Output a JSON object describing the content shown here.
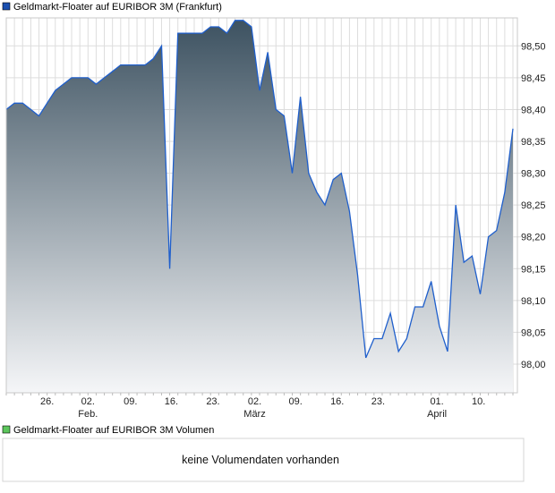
{
  "legend_price": "Geldmarkt-Floater auf EURIBOR 3M (Frankfurt)",
  "legend_volume": "Geldmarkt-Floater auf EURIBOR 3M Volumen",
  "volume_message": "keine Volumendaten vorhanden",
  "colors": {
    "line": "#1f5fcc",
    "fill_top": "#3d5261",
    "fill_bottom": "#f5f6f8",
    "legend_price": "#1a4fb0",
    "legend_volume": "#5cc65c",
    "grid": "#dddddd"
  },
  "chart_data": {
    "type": "area",
    "title": "Geldmarkt-Floater auf EURIBOR 3M (Frankfurt)",
    "xlabel": "",
    "ylabel": "",
    "ylim": [
      97.955,
      98.544
    ],
    "yticks": [
      "98,00",
      "98,05",
      "98,10",
      "98,15",
      "98,20",
      "98,25",
      "98,30",
      "98,35",
      "98,40",
      "98,45",
      "98,50"
    ],
    "ytick_values": [
      98.0,
      98.05,
      98.1,
      98.15,
      98.2,
      98.25,
      98.3,
      98.35,
      98.4,
      98.45,
      98.5
    ],
    "xticks": [
      {
        "index": 5,
        "label": "26.",
        "month": ""
      },
      {
        "index": 10,
        "label": "02.",
        "month": "Feb."
      },
      {
        "index": 15.2,
        "label": "09.",
        "month": ""
      },
      {
        "index": 20.2,
        "label": "16.",
        "month": ""
      },
      {
        "index": 25.3,
        "label": "23.",
        "month": ""
      },
      {
        "index": 30.4,
        "label": "02.",
        "month": "März"
      },
      {
        "index": 35.4,
        "label": "09.",
        "month": ""
      },
      {
        "index": 40.5,
        "label": "16.",
        "month": ""
      },
      {
        "index": 45.5,
        "label": "23.",
        "month": ""
      },
      {
        "index": 52.7,
        "label": "01.",
        "month": "April"
      },
      {
        "index": 57.8,
        "label": "10.",
        "month": ""
      }
    ],
    "grid": true,
    "values": [
      98.4,
      98.41,
      98.41,
      98.4,
      98.39,
      98.41,
      98.43,
      98.44,
      98.45,
      98.45,
      98.45,
      98.44,
      98.45,
      98.46,
      98.47,
      98.47,
      98.47,
      98.47,
      98.48,
      98.5,
      98.15,
      98.52,
      98.52,
      98.52,
      98.52,
      98.53,
      98.53,
      98.52,
      98.54,
      98.54,
      98.53,
      98.43,
      98.49,
      98.4,
      98.39,
      98.3,
      98.42,
      98.3,
      98.27,
      98.25,
      98.29,
      98.3,
      98.24,
      98.14,
      98.01,
      98.04,
      98.04,
      98.08,
      98.02,
      98.04,
      98.09,
      98.09,
      98.13,
      98.06,
      98.02,
      98.25,
      98.16,
      98.17,
      98.11,
      98.2,
      98.21,
      98.27,
      98.37
    ]
  }
}
